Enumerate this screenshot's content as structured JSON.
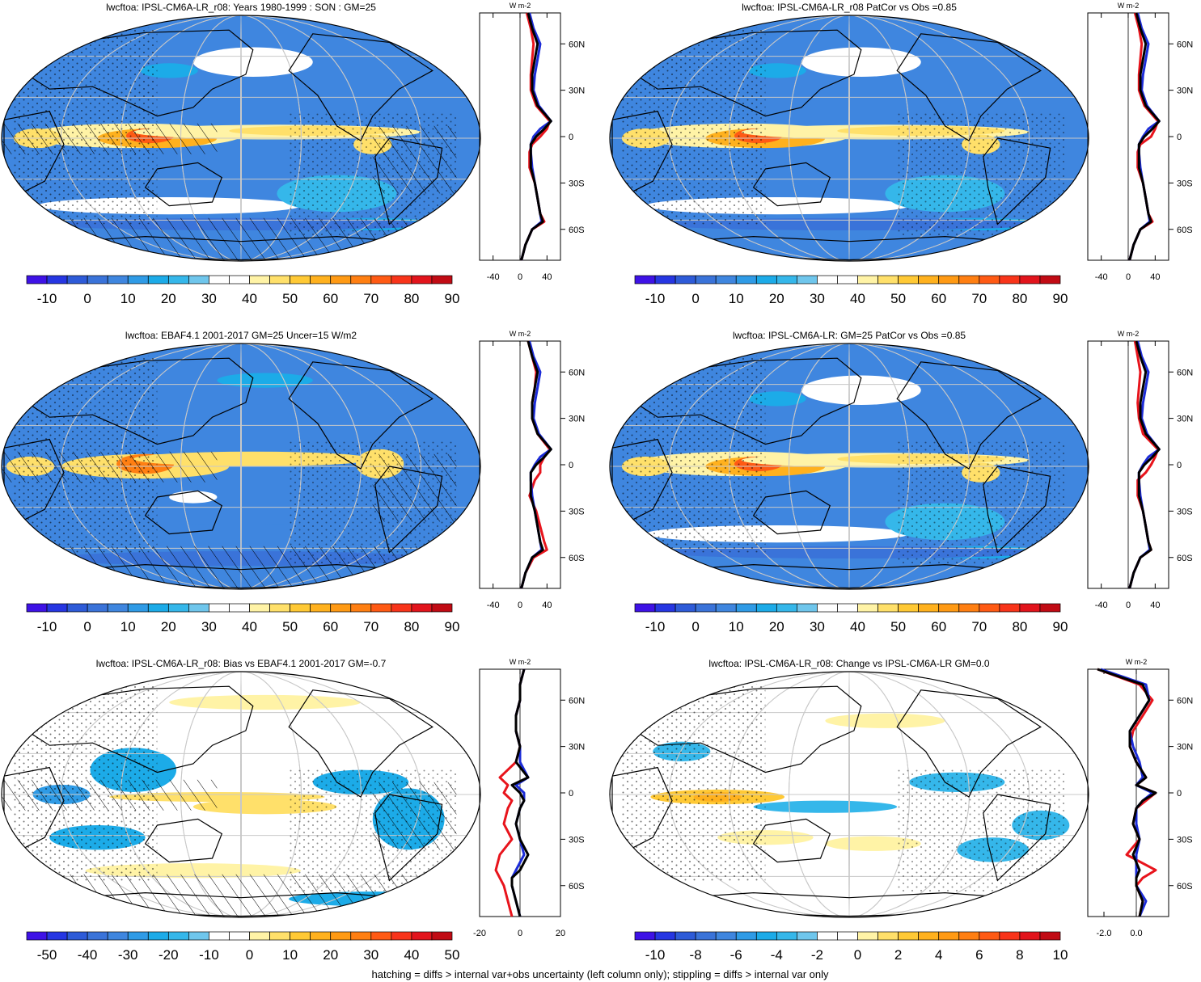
{
  "footer": "hatching = diffs > internal var+obs uncertainty (left column only); stippling = diffs > internal var only",
  "colors": {
    "palette_blue_to_red": [
      "#3e12e6",
      "#2636e2",
      "#2e5bd8",
      "#3a73d9",
      "#3f86df",
      "#2f9be6",
      "#1cabe8",
      "#35b7ea",
      "#6fc6ec",
      "#ffffff",
      "#ffffff",
      "#fff3a6",
      "#ffe06a",
      "#ffc935",
      "#ffb11e",
      "#ff9a14",
      "#ff7f12",
      "#ff5a14",
      "#f8341a",
      "#e2141c",
      "#c10b14"
    ],
    "model_line": "#e8141c",
    "model2_line": "#1c2cd8",
    "obs_line": "#000000",
    "coast": "#000000",
    "grid": "#c8c8c8"
  },
  "panels": [
    {
      "title": "lwcftoa: IPSL-CM6A-LR_r08: Years 1980-1999 : SON : GM=25",
      "field": "mean",
      "hatch": true,
      "colorbar": {
        "labels": [
          "-10",
          "0",
          "10",
          "20",
          "30",
          "40",
          "50",
          "60",
          "70",
          "80",
          "90"
        ]
      },
      "zonal": {
        "xticks": [
          "-40",
          "0",
          "40"
        ],
        "unit": "W m-2",
        "lat_labels": [
          "60N",
          "30N",
          "0",
          "30S",
          "60S"
        ]
      }
    },
    {
      "title": "lwcftoa: IPSL-CM6A-LR_r08 PatCor vs Obs =0.85",
      "field": "mean",
      "hatch": false,
      "colorbar": {
        "labels": [
          "-10",
          "0",
          "10",
          "20",
          "30",
          "40",
          "50",
          "60",
          "70",
          "80",
          "90"
        ]
      },
      "zonal": {
        "xticks": [
          "-40",
          "0",
          "40"
        ],
        "unit": "W m-2",
        "lat_labels": [
          "60N",
          "30N",
          "0",
          "30S",
          "60S"
        ]
      }
    },
    {
      "title": "lwcftoa: EBAF4.1 2001-2017 GM=25 Uncer=15 W/m2",
      "field": "obs",
      "hatch": true,
      "colorbar": {
        "labels": [
          "-10",
          "0",
          "10",
          "20",
          "30",
          "40",
          "50",
          "60",
          "70",
          "80",
          "90"
        ]
      },
      "zonal": {
        "xticks": [
          "-40",
          "0",
          "40"
        ],
        "unit": "W m-2",
        "lat_labels": [
          "60N",
          "30N",
          "0",
          "30S",
          "60S"
        ]
      }
    },
    {
      "title": "lwcftoa: IPSL-CM6A-LR: GM=25 PatCor vs Obs =0.85",
      "field": "mean",
      "hatch": false,
      "colorbar": {
        "labels": [
          "-10",
          "0",
          "10",
          "20",
          "30",
          "40",
          "50",
          "60",
          "70",
          "80",
          "90"
        ]
      },
      "zonal": {
        "xticks": [
          "-40",
          "0",
          "40"
        ],
        "unit": "W m-2",
        "lat_labels": [
          "60N",
          "30N",
          "0",
          "30S",
          "60S"
        ]
      }
    },
    {
      "title": "lwcftoa: IPSL-CM6A-LR_r08: Bias vs EBAF4.1 2001-2017  GM=-0.7",
      "field": "bias",
      "hatch": true,
      "colorbar": {
        "labels": [
          "-50",
          "-40",
          "-30",
          "-20",
          "-10",
          "0",
          "10",
          "20",
          "30",
          "40",
          "50"
        ]
      },
      "zonal": {
        "xticks": [
          "-20",
          "0",
          "20"
        ],
        "unit": "W m-2",
        "lat_labels": [
          "60N",
          "30N",
          "0",
          "30S",
          "60S"
        ]
      }
    },
    {
      "title": "lwcftoa: IPSL-CM6A-LR_r08: Change vs IPSL-CM6A-LR GM=0.0",
      "field": "change",
      "hatch": false,
      "colorbar": {
        "labels": [
          "-10",
          "-8",
          "-6",
          "-4",
          "-2",
          "0",
          "2",
          "4",
          "6",
          "8",
          "10"
        ]
      },
      "zonal": {
        "xticks": [
          "-2.0",
          "0.0"
        ],
        "unit": "W m-2",
        "lat_labels": [
          "60N",
          "30N",
          "0",
          "30S",
          "60S"
        ]
      }
    }
  ],
  "chart_data": [
    {
      "type": "heatmap",
      "title": "lwcftoa: IPSL-CM6A-LR_r08: Years 1980-1999 : SON : GM=25",
      "projection": "Robinson, 180 centered",
      "colorbar_ticks": [
        -10,
        0,
        10,
        20,
        30,
        40,
        50,
        60,
        70,
        80,
        90
      ],
      "zonal_mean": {
        "xlim": [
          -60,
          60
        ],
        "xticks": [
          -40,
          0,
          40
        ],
        "lat": [
          80,
          70,
          60,
          50,
          40,
          30,
          20,
          10,
          5,
          0,
          -5,
          -10,
          -20,
          -30,
          -40,
          -50,
          -55,
          -60,
          -70,
          -80
        ],
        "model": [
          10,
          16,
          20,
          18,
          16,
          16,
          24,
          44,
          40,
          30,
          18,
          14,
          14,
          22,
          26,
          30,
          36,
          18,
          8,
          2
        ],
        "model2": [
          14,
          20,
          30,
          26,
          22,
          20,
          28,
          46,
          30,
          20,
          16,
          16,
          18,
          22,
          26,
          30,
          32,
          18,
          8,
          2
        ],
        "obs": [
          12,
          18,
          26,
          22,
          18,
          18,
          26,
          46,
          36,
          24,
          16,
          16,
          16,
          22,
          26,
          30,
          34,
          18,
          8,
          2
        ]
      }
    },
    {
      "type": "heatmap",
      "title": "lwcftoa: IPSL-CM6A-LR_r08 PatCor vs Obs =0.85",
      "projection": "Robinson, 180 centered",
      "colorbar_ticks": [
        -10,
        0,
        10,
        20,
        30,
        40,
        50,
        60,
        70,
        80,
        90
      ],
      "zonal_mean": {
        "xlim": [
          -60,
          60
        ],
        "xticks": [
          -40,
          0,
          40
        ],
        "lat": [
          80,
          70,
          60,
          50,
          40,
          30,
          20,
          10,
          5,
          0,
          -5,
          -10,
          -20,
          -30,
          -40,
          -50,
          -55,
          -60,
          -70,
          -80
        ],
        "model": [
          10,
          16,
          20,
          18,
          16,
          16,
          24,
          44,
          40,
          34,
          18,
          14,
          14,
          22,
          26,
          30,
          36,
          18,
          8,
          2
        ],
        "model2": [
          14,
          20,
          30,
          26,
          22,
          20,
          28,
          46,
          30,
          22,
          16,
          16,
          18,
          22,
          26,
          30,
          32,
          18,
          8,
          2
        ],
        "obs": [
          12,
          18,
          26,
          22,
          18,
          18,
          26,
          46,
          36,
          24,
          16,
          16,
          16,
          22,
          26,
          30,
          34,
          18,
          8,
          2
        ]
      }
    },
    {
      "type": "heatmap",
      "title": "lwcftoa: EBAF4.1 2001-2017 GM=25 Uncer=15 W/m2",
      "projection": "Robinson, 180 centered",
      "colorbar_ticks": [
        -10,
        0,
        10,
        20,
        30,
        40,
        50,
        60,
        70,
        80,
        90
      ],
      "zonal_mean": {
        "xlim": [
          -60,
          60
        ],
        "xticks": [
          -40,
          0,
          40
        ],
        "lat": [
          80,
          70,
          60,
          50,
          40,
          30,
          20,
          10,
          5,
          0,
          -5,
          -10,
          -20,
          -30,
          -40,
          -50,
          -55,
          -60,
          -70,
          -80
        ],
        "model": [
          12,
          18,
          24,
          22,
          18,
          18,
          26,
          44,
          36,
          30,
          30,
          22,
          14,
          24,
          30,
          36,
          40,
          20,
          8,
          2
        ],
        "model2": [
          14,
          20,
          30,
          26,
          22,
          20,
          28,
          46,
          30,
          22,
          16,
          16,
          18,
          22,
          26,
          30,
          32,
          18,
          8,
          2
        ],
        "obs": [
          12,
          18,
          26,
          22,
          18,
          18,
          26,
          46,
          36,
          24,
          16,
          16,
          16,
          22,
          26,
          30,
          34,
          18,
          8,
          2
        ]
      }
    },
    {
      "type": "heatmap",
      "title": "lwcftoa: IPSL-CM6A-LR: GM=25 PatCor vs Obs =0.85",
      "projection": "Robinson, 180 centered",
      "colorbar_ticks": [
        -10,
        0,
        10,
        20,
        30,
        40,
        50,
        60,
        70,
        80,
        90
      ],
      "zonal_mean": {
        "xlim": [
          -60,
          60
        ],
        "xticks": [
          -40,
          0,
          40
        ],
        "lat": [
          80,
          70,
          60,
          50,
          40,
          30,
          20,
          10,
          5,
          0,
          -5,
          -10,
          -20,
          -30,
          -40,
          -50,
          -55,
          -60,
          -70,
          -80
        ],
        "model": [
          10,
          14,
          18,
          16,
          14,
          16,
          22,
          44,
          40,
          34,
          26,
          14,
          14,
          22,
          26,
          30,
          34,
          18,
          8,
          2
        ],
        "model2": [
          14,
          20,
          30,
          26,
          22,
          20,
          28,
          46,
          30,
          22,
          16,
          16,
          18,
          22,
          26,
          30,
          32,
          18,
          8,
          2
        ],
        "obs": [
          12,
          18,
          26,
          22,
          18,
          18,
          26,
          46,
          36,
          24,
          16,
          16,
          16,
          22,
          26,
          30,
          34,
          18,
          8,
          2
        ]
      }
    },
    {
      "type": "heatmap",
      "title": "lwcftoa: IPSL-CM6A-LR_r08: Bias vs EBAF4.1 2001-2017  GM=-0.7",
      "projection": "Robinson, 180 centered",
      "colorbar_ticks": [
        -50,
        -40,
        -30,
        -20,
        -10,
        0,
        10,
        20,
        30,
        40,
        50
      ],
      "zonal_mean": {
        "xlim": [
          -20,
          20
        ],
        "xticks": [
          -20,
          0,
          20
        ],
        "lat": [
          80,
          70,
          60,
          50,
          40,
          30,
          20,
          10,
          5,
          0,
          -5,
          -10,
          -20,
          -30,
          -40,
          -50,
          -55,
          -60,
          -70,
          -80
        ],
        "model": [
          2,
          0,
          0,
          -2,
          -2,
          0,
          -2,
          -10,
          -6,
          -8,
          -4,
          -6,
          -8,
          -4,
          -10,
          -12,
          -10,
          -8,
          -6,
          -4
        ],
        "model2": [
          2,
          0,
          0,
          -2,
          -2,
          0,
          0,
          4,
          -2,
          2,
          2,
          0,
          -2,
          0,
          2,
          -2,
          -4,
          -4,
          -2,
          0
        ],
        "obs": [
          2,
          0,
          0,
          -2,
          -2,
          0,
          -2,
          4,
          -4,
          0,
          2,
          0,
          -2,
          0,
          4,
          0,
          -4,
          -4,
          -2,
          0
        ]
      }
    },
    {
      "type": "heatmap",
      "title": "lwcftoa: IPSL-CM6A-LR_r08: Change vs IPSL-CM6A-LR GM=0.0",
      "projection": "Robinson, 180 centered",
      "colorbar_ticks": [
        -10,
        -8,
        -6,
        -4,
        -2,
        0,
        2,
        4,
        6,
        8,
        10
      ],
      "zonal_mean": {
        "xlim": [
          -3,
          2
        ],
        "xticks": [
          -2,
          0
        ],
        "lat": [
          80,
          70,
          60,
          50,
          40,
          30,
          20,
          10,
          5,
          0,
          -5,
          -10,
          -20,
          -30,
          -40,
          -50,
          -55,
          -60,
          -70,
          -80
        ],
        "model": [
          -2.4,
          0.2,
          1.0,
          0.4,
          -0.2,
          -0.4,
          0.0,
          0.6,
          0.0,
          1.2,
          0.6,
          0.0,
          -0.2,
          0.2,
          -0.6,
          1.2,
          0.4,
          0.0,
          0.4,
          0.2
        ],
        "model2": [
          -2.2,
          0.6,
          0.8,
          0.2,
          -0.4,
          -0.2,
          0.2,
          0.4,
          0.0,
          1.0,
          0.4,
          0.0,
          0.0,
          0.2,
          0.0,
          0.0,
          0.0,
          0.0,
          0.6,
          0.2
        ],
        "obs": [
          -2.4,
          0.4,
          0.8,
          0.2,
          -0.4,
          -0.4,
          0.0,
          0.6,
          0.0,
          1.2,
          0.4,
          0.0,
          -0.2,
          0.2,
          -0.2,
          0.2,
          0.0,
          0.0,
          0.4,
          0.2
        ]
      }
    }
  ]
}
